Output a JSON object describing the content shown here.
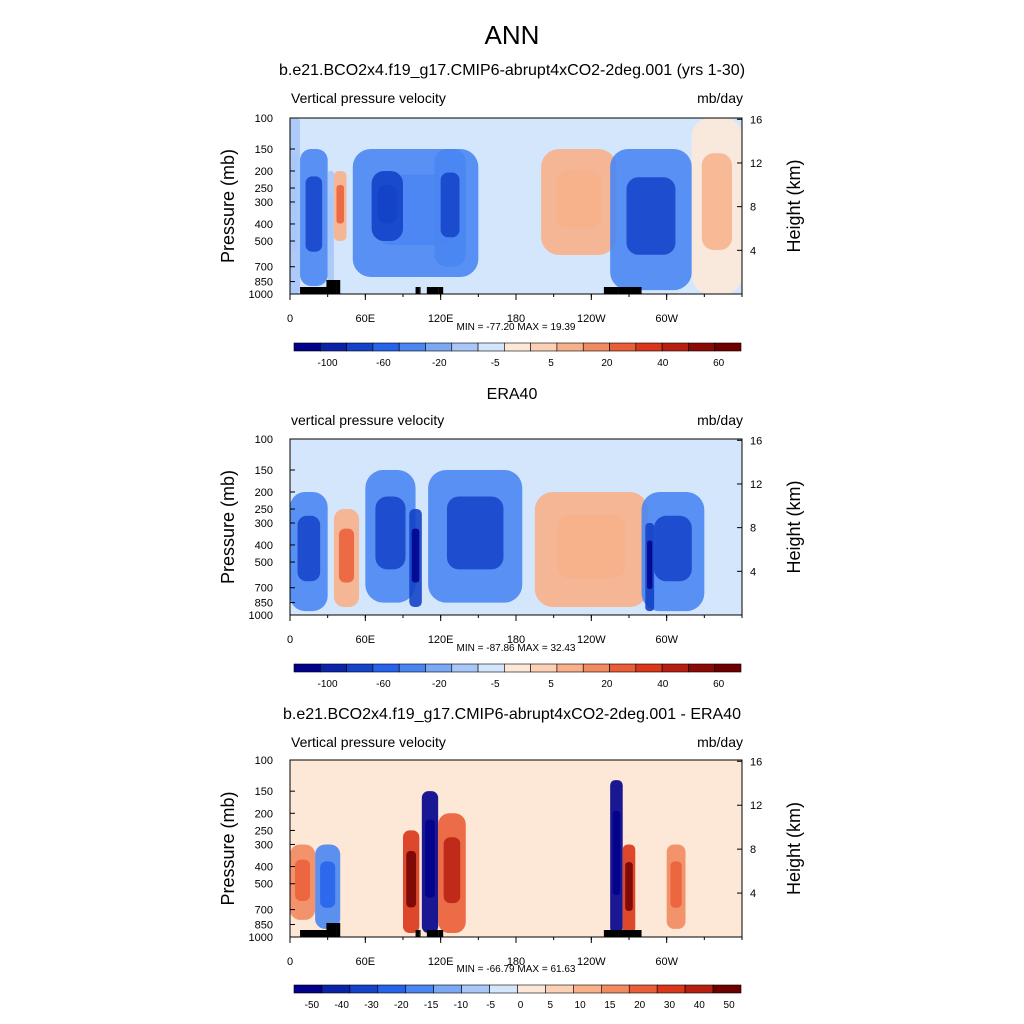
{
  "page": {
    "title": "ANN"
  },
  "panels": [
    {
      "title": "b.e21.BCO2x4.f19_g17.CMIP6-abrupt4xCO2-2deg.001 (yrs 1-30)",
      "variable_label": "Vertical pressure velocity",
      "units": "mb/day",
      "minmax_text": "MIN = -77.20  MAX =  19.39",
      "colorbar": {
        "labels": [
          "-100",
          "-60",
          "-20",
          "-5",
          "5",
          "20",
          "40",
          "60"
        ],
        "colors": [
          "#00008b",
          "#0a23a8",
          "#1442c8",
          "#2563eb",
          "#4a86f2",
          "#7aa8f5",
          "#a8c7f8",
          "#d4e6fb",
          "#fde8d8",
          "#fbd0b5",
          "#f7b08a",
          "#f28a60",
          "#ea5e37",
          "#d9361a",
          "#b81f10",
          "#8b0a06",
          "#6e0000"
        ]
      }
    },
    {
      "title": "ERA40",
      "variable_label": "vertical pressure velocity",
      "units": "mb/day",
      "minmax_text": "MIN = -87.86  MAX =  32.43",
      "colorbar": {
        "labels": [
          "-100",
          "-60",
          "-20",
          "-5",
          "5",
          "20",
          "40",
          "60"
        ],
        "colors": [
          "#00008b",
          "#0a23a8",
          "#1442c8",
          "#2563eb",
          "#4a86f2",
          "#7aa8f5",
          "#a8c7f8",
          "#d4e6fb",
          "#fde8d8",
          "#fbd0b5",
          "#f7b08a",
          "#f28a60",
          "#ea5e37",
          "#d9361a",
          "#b81f10",
          "#8b0a06",
          "#6e0000"
        ]
      }
    },
    {
      "title": "b.e21.BCO2x4.f19_g17.CMIP6-abrupt4xCO2-2deg.001 - ERA40",
      "variable_label": "Vertical pressure velocity",
      "units": "mb/day",
      "minmax_text": "MIN = -66.79  MAX =  61.63",
      "colorbar": {
        "labels": [
          "-50",
          "-40",
          "-30",
          "-20",
          "-15",
          "-10",
          "-5",
          "0",
          "5",
          "10",
          "15",
          "20",
          "30",
          "40",
          "50"
        ],
        "colors": [
          "#00008b",
          "#0a23a8",
          "#1442c8",
          "#2563eb",
          "#4a86f2",
          "#7aa8f5",
          "#a8c7f8",
          "#d4e6fb",
          "#fde8d8",
          "#fbd0b5",
          "#f7b08a",
          "#f28a60",
          "#ea5e37",
          "#d9361a",
          "#b81f10",
          "#6e0000"
        ]
      }
    }
  ],
  "chart_data": [
    {
      "type": "heatmap",
      "title": "b.e21.BCO2x4.f19_g17.CMIP6-abrupt4xCO2-2deg.001 (yrs 1-30)",
      "xlabel": "",
      "ylabel": "Pressure (mb)",
      "ylabel_right": "Height (km)",
      "x_ticks": [
        "0",
        "60E",
        "120E",
        "180",
        "120W",
        "60W"
      ],
      "y_ticks": [
        "100",
        "150",
        "200",
        "250",
        "300",
        "400",
        "500",
        "700",
        "850",
        "1000"
      ],
      "y_right_ticks": [
        "4",
        "8",
        "12",
        "16"
      ],
      "x_range": [
        0,
        360
      ],
      "y_range": [
        1000,
        100
      ],
      "y_scale": "log",
      "min": -77.2,
      "max": 19.39,
      "terrain": [
        [
          8,
          30
        ],
        [
          29,
          37
        ],
        [
          37,
          40
        ],
        [
          100,
          103
        ],
        [
          103,
          104
        ],
        [
          109,
          118
        ],
        [
          118,
          122
        ],
        [
          250,
          262
        ],
        [
          262,
          272
        ],
        [
          272,
          280
        ]
      ],
      "cells": [
        {
          "lon": [
            0,
            8
          ],
          "p": [
            100,
            1000
          ],
          "v": -5
        },
        {
          "lon": [
            8,
            30
          ],
          "p": [
            150,
            900
          ],
          "v": -40
        },
        {
          "lon": [
            30,
            35
          ],
          "p": [
            200,
            900
          ],
          "v": -10
        },
        {
          "lon": [
            35,
            45
          ],
          "p": [
            200,
            500
          ],
          "v": 15
        },
        {
          "lon": [
            50,
            150
          ],
          "p": [
            150,
            800
          ],
          "v": -30
        },
        {
          "lon": [
            65,
            90
          ],
          "p": [
            200,
            500
          ],
          "v": -60
        },
        {
          "lon": [
            115,
            140
          ],
          "p": [
            150,
            700
          ],
          "v": -50
        },
        {
          "lon": [
            200,
            260
          ],
          "p": [
            150,
            600
          ],
          "v": 10
        },
        {
          "lon": [
            255,
            320
          ],
          "p": [
            150,
            950
          ],
          "v": -40
        },
        {
          "lon": [
            320,
            360
          ],
          "p": [
            100,
            1000
          ],
          "v": 5
        }
      ]
    },
    {
      "type": "heatmap",
      "title": "ERA40",
      "xlabel": "",
      "ylabel": "Pressure (mb)",
      "ylabel_right": "Height (km)",
      "x_ticks": [
        "0",
        "60E",
        "120E",
        "180",
        "120W",
        "60W"
      ],
      "y_ticks": [
        "100",
        "150",
        "200",
        "250",
        "300",
        "400",
        "500",
        "700",
        "850",
        "1000"
      ],
      "y_right_ticks": [
        "4",
        "8",
        "12",
        "16"
      ],
      "x_range": [
        0,
        360
      ],
      "y_range": [
        1000,
        100
      ],
      "y_scale": "log",
      "min": -87.86,
      "max": 32.43,
      "cells": [
        {
          "lon": [
            0,
            30
          ],
          "p": [
            200,
            950
          ],
          "v": -40
        },
        {
          "lon": [
            35,
            55
          ],
          "p": [
            250,
            900
          ],
          "v": 20
        },
        {
          "lon": [
            60,
            100
          ],
          "p": [
            150,
            850
          ],
          "v": -40
        },
        {
          "lon": [
            95,
            105
          ],
          "p": [
            250,
            900
          ],
          "v": -80
        },
        {
          "lon": [
            110,
            185
          ],
          "p": [
            150,
            850
          ],
          "v": -40
        },
        {
          "lon": [
            195,
            285
          ],
          "p": [
            200,
            900
          ],
          "v": 10
        },
        {
          "lon": [
            280,
            330
          ],
          "p": [
            200,
            950
          ],
          "v": -40
        },
        {
          "lon": [
            283,
            290
          ],
          "p": [
            300,
            950
          ],
          "v": -80
        }
      ]
    },
    {
      "type": "heatmap",
      "title": "b.e21.BCO2x4.f19_g17.CMIP6-abrupt4xCO2-2deg.001 - ERA40",
      "xlabel": "",
      "ylabel": "Pressure (mb)",
      "ylabel_right": "Height (km)",
      "x_ticks": [
        "0",
        "60E",
        "120E",
        "180",
        "120W",
        "60W"
      ],
      "y_ticks": [
        "100",
        "150",
        "200",
        "250",
        "300",
        "400",
        "500",
        "700",
        "850",
        "1000"
      ],
      "y_right_ticks": [
        "4",
        "8",
        "12",
        "16"
      ],
      "x_range": [
        0,
        360
      ],
      "y_range": [
        1000,
        100
      ],
      "y_scale": "log",
      "min": -66.79,
      "max": 61.63,
      "terrain": [
        [
          8,
          30
        ],
        [
          29,
          37
        ],
        [
          37,
          40
        ],
        [
          100,
          103
        ],
        [
          103,
          104
        ],
        [
          109,
          118
        ],
        [
          118,
          122
        ],
        [
          250,
          262
        ],
        [
          262,
          272
        ],
        [
          272,
          280
        ]
      ],
      "cells": [
        {
          "lon": [
            0,
            20
          ],
          "p": [
            300,
            800
          ],
          "v": 20
        },
        {
          "lon": [
            20,
            40
          ],
          "p": [
            300,
            900
          ],
          "v": -15
        },
        {
          "lon": [
            90,
            103
          ],
          "p": [
            250,
            950
          ],
          "v": 40
        },
        {
          "lon": [
            105,
            118
          ],
          "p": [
            150,
            950
          ],
          "v": -50
        },
        {
          "lon": [
            118,
            140
          ],
          "p": [
            200,
            950
          ],
          "v": 30
        },
        {
          "lon": [
            255,
            265
          ],
          "p": [
            130,
            950
          ],
          "v": -50
        },
        {
          "lon": [
            265,
            275
          ],
          "p": [
            300,
            950
          ],
          "v": 40
        },
        {
          "lon": [
            300,
            315
          ],
          "p": [
            300,
            900
          ],
          "v": 20
        }
      ]
    }
  ]
}
